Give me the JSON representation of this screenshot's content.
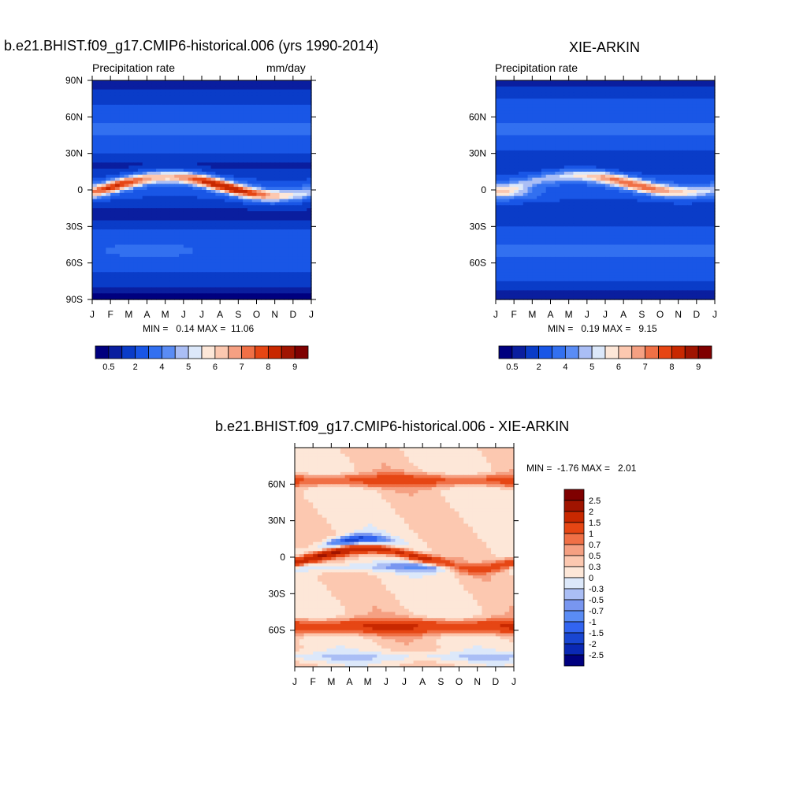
{
  "chart_data": [
    {
      "type": "heatmap",
      "title": "b.e21.BHIST.f09_g17.CMIP6-historical.006 (yrs 1990-2014)",
      "left_string": "Precipitation rate",
      "right_string": "mm/day",
      "x_ticks": [
        "J",
        "F",
        "M",
        "A",
        "M",
        "J",
        "J",
        "A",
        "S",
        "O",
        "N",
        "D",
        "J"
      ],
      "y_ticks": [
        "90N",
        "60N",
        "30N",
        "0",
        "30S",
        "60S",
        "90S"
      ],
      "ylim": [
        -90,
        90
      ],
      "min": 0.14,
      "max": 11.06,
      "minmax_text": "MIN =   0.14 MAX =  11.06",
      "levels": [
        0.5,
        1,
        2,
        3,
        4,
        4.5,
        5,
        5.5,
        6,
        6.5,
        7,
        7.5,
        8,
        9,
        10
      ],
      "colorbar_labels": [
        "0.5",
        "2",
        "4",
        "5",
        "6",
        "7",
        "8",
        "9"
      ],
      "colorbar_orientation": "horizontal"
    },
    {
      "type": "heatmap",
      "title": "XIE-ARKIN",
      "left_string": "Precipitation rate",
      "x_ticks": [
        "J",
        "F",
        "M",
        "A",
        "M",
        "J",
        "J",
        "A",
        "S",
        "O",
        "N",
        "D",
        "J"
      ],
      "y_ticks": [
        "60N",
        "30N",
        "0",
        "30S",
        "60S"
      ],
      "min": 0.19,
      "max": 9.15,
      "minmax_text": "MIN =   0.19 MAX =   9.15",
      "colorbar_labels": [
        "0.5",
        "2",
        "4",
        "5",
        "6",
        "7",
        "8",
        "9"
      ],
      "colorbar_orientation": "horizontal"
    },
    {
      "type": "heatmap",
      "title": "b.e21.BHIST.f09_g17.CMIP6-historical.006 - XIE-ARKIN",
      "x_ticks": [
        "J",
        "F",
        "M",
        "A",
        "M",
        "J",
        "J",
        "A",
        "S",
        "O",
        "N",
        "D",
        "J"
      ],
      "y_ticks": [
        "60N",
        "30N",
        "0",
        "30S",
        "60S"
      ],
      "min": -1.76,
      "max": 2.01,
      "minmax_text": "MIN =  -1.76 MAX =   2.01",
      "colorbar_labels": [
        "2.5",
        "2",
        "1.5",
        "1",
        "0.7",
        "0.5",
        "0.3",
        "0",
        "-0.3",
        "-0.5",
        "-0.7",
        "-1",
        "-1.5",
        "-2",
        "-2.5"
      ],
      "colorbar_orientation": "vertical"
    }
  ],
  "colors": {
    "precip_scale": [
      "#00007f",
      "#0a1e9f",
      "#0a3cc8",
      "#1956e6",
      "#3270f0",
      "#5a8cf5",
      "#aabef5",
      "#dce8fa",
      "#fde7d8",
      "#fcc8b0",
      "#f5a082",
      "#f07046",
      "#e64614",
      "#c82800",
      "#a01400",
      "#7f0000"
    ],
    "diff_scale": [
      "#7f0000",
      "#a01400",
      "#c82800",
      "#e64614",
      "#f07046",
      "#f5a082",
      "#fcc8b0",
      "#fde7d8",
      "#dce8fa",
      "#aabef5",
      "#7896f0",
      "#5a8cf5",
      "#3264f0",
      "#1946d2",
      "#0a28b4",
      "#00007f"
    ],
    "axis": "#000000"
  }
}
